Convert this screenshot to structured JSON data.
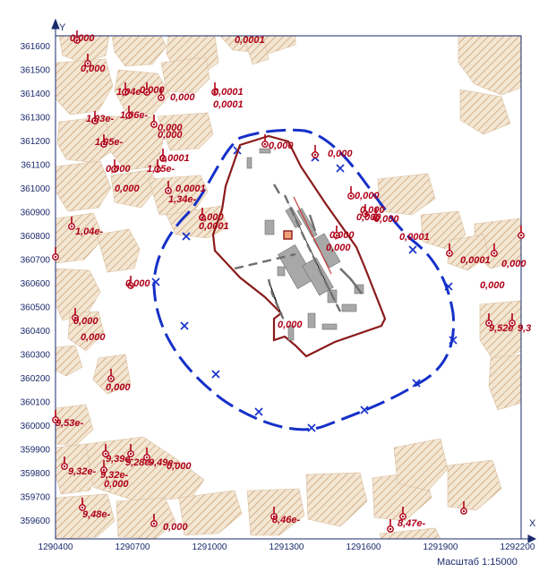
{
  "axes": {
    "x_label": "X",
    "y_label": "Y"
  },
  "scale_text": "Масштаб 1:15000",
  "x_ticks": [
    "1290400",
    "1290700",
    "1291000",
    "1291300",
    "1291600",
    "1291900",
    "1292200"
  ],
  "y_ticks": [
    "361600",
    "361500",
    "361400",
    "361300",
    "361200",
    "361100",
    "361000",
    "360900",
    "360800",
    "360700",
    "360600",
    "360500",
    "360400",
    "360300",
    "360200",
    "360100",
    "360000",
    "359900",
    "359800",
    "359700",
    "359600"
  ],
  "values": [
    "0,000",
    "0,000",
    "1,04e-",
    "0,000",
    "0,000",
    "0,0001",
    "0,0001",
    "1,03e-",
    "1,06e-",
    "0,000",
    "0,000",
    "1,05e-",
    "0,0001",
    "0,000",
    "1,15e-",
    "0,000",
    "0,0001",
    "1,34e-",
    "0,000",
    "0,0001",
    "0,0001",
    "1,04e-",
    "0,000",
    "0,000",
    "0,000",
    "0,000",
    "0,000",
    "0,000",
    "0,000",
    "0,000",
    "0,000",
    "0,0001",
    "0,0001",
    "0,000",
    "0,000",
    "0,000",
    "0,000",
    "0,000",
    "9,52e",
    "9,3",
    "0,000",
    "9,53e-",
    "9,39e-",
    "9,28e-",
    "9,49e-",
    "9,32e-",
    "9,32e-",
    "0,000",
    "9,48e-",
    "0,000",
    "0,000",
    "8,46e-",
    "8,47e-"
  ],
  "colors": {
    "zone": "#1530c8",
    "boundary": "#8b1a1a",
    "hatch": "#c49a6c",
    "label": "#b00018"
  }
}
